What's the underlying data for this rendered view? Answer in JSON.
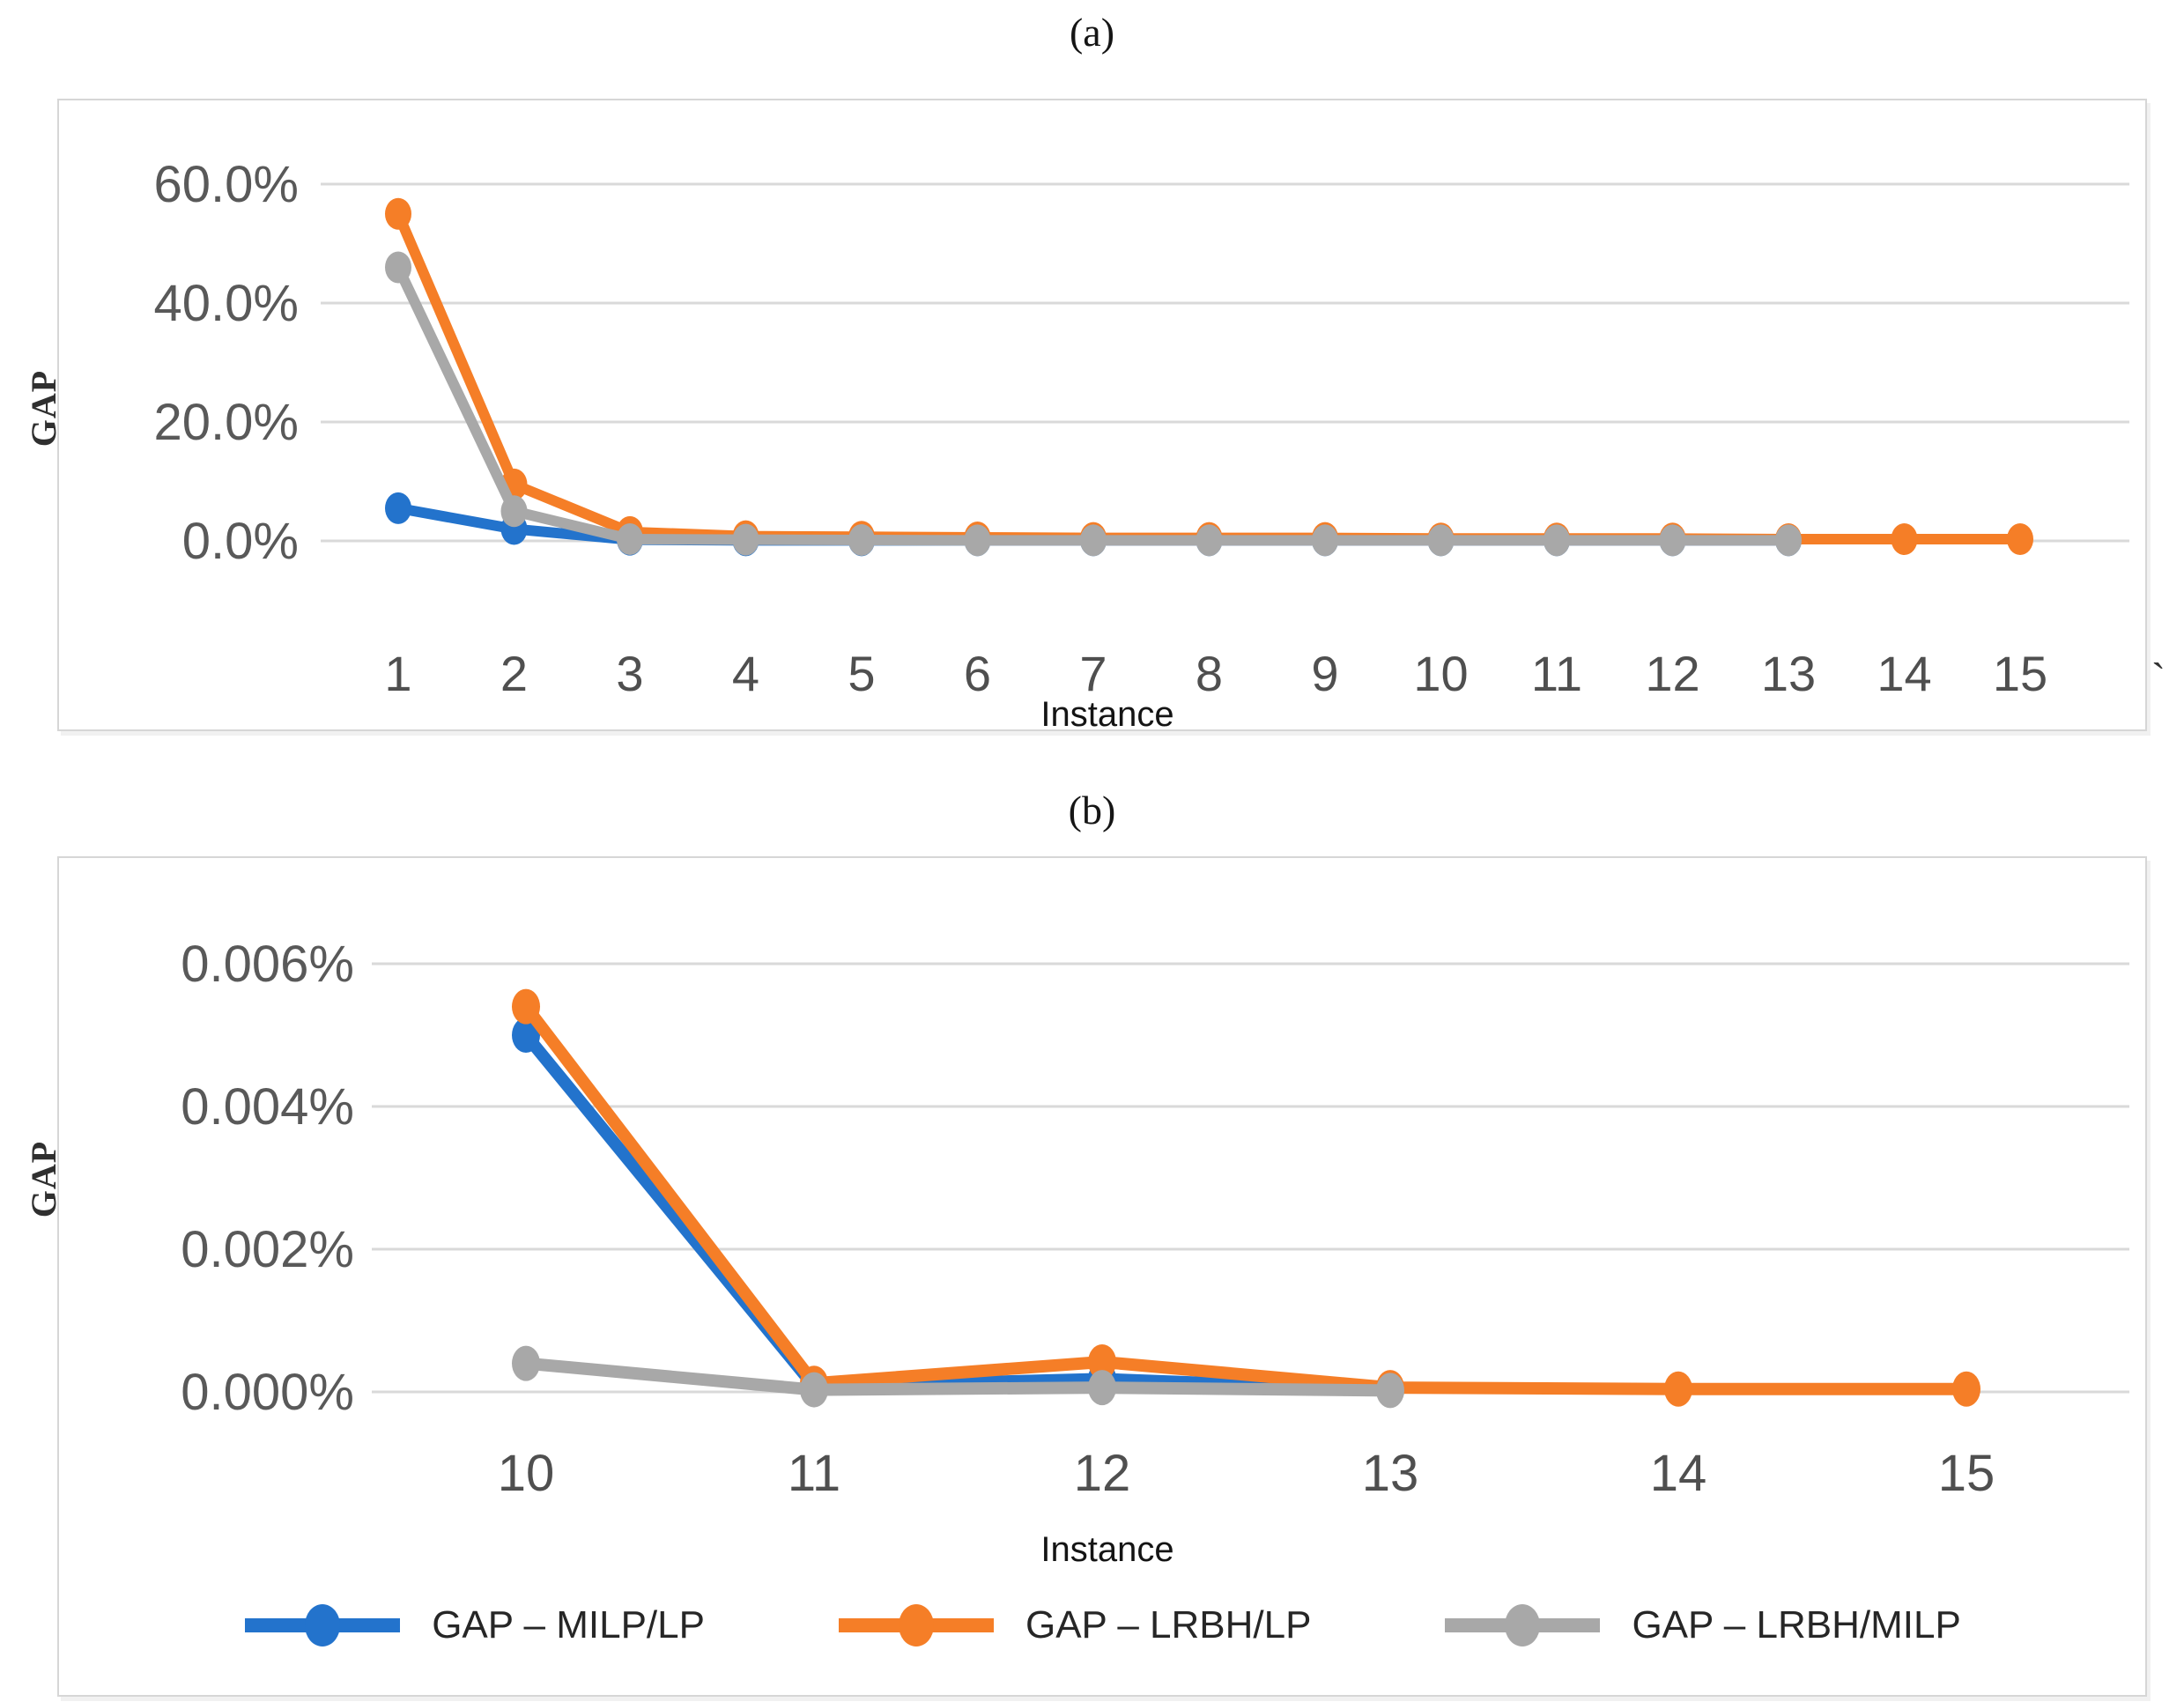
{
  "stray_mark": "`",
  "colors": {
    "series_blue": "#2373CC",
    "series_orange": "#F57E27",
    "series_gray": "#A8A8A8",
    "gridline": "#d9d9d9",
    "axis_text": "#595959",
    "x_tick_text": "#4f4f4f",
    "panel_border": "#d6d6d6"
  },
  "legend": {
    "items": [
      {
        "label": "GAP – MILP/LP",
        "color": "#2373CC"
      },
      {
        "label": "GAP – LRBH/LP",
        "color": "#F57E27"
      },
      {
        "label": "GAP – LRBH/MILP",
        "color": "#A8A8A8"
      }
    ]
  },
  "chart_data": [
    {
      "type": "line",
      "title": "(a)",
      "xlabel": "Instance",
      "ylabel": "GAP",
      "x_tick_labels": [
        "1",
        "2",
        "3",
        "4",
        "5",
        "6",
        "7",
        "8",
        "9",
        "10",
        "11",
        "12",
        "13",
        "14",
        "15"
      ],
      "y_ticks": {
        "labels": [
          "60.0%",
          "40.0%",
          "20.0%",
          "0.0%"
        ],
        "values": [
          60,
          40,
          20,
          0
        ]
      },
      "ylim": [
        0,
        65
      ],
      "grid": "horizontal",
      "legend_position": "shared-bottom",
      "series": [
        {
          "name": "GAP – MILP/LP",
          "color": "#2373CC",
          "x": [
            1,
            2,
            3,
            4,
            5,
            6,
            7,
            8,
            9,
            10,
            11,
            12,
            13
          ],
          "values": [
            5.5,
            2.0,
            0.2,
            0.1,
            0.1,
            0.1,
            0.1,
            0.1,
            0.1,
            0.1,
            0.1,
            0.1,
            0.1
          ]
        },
        {
          "name": "GAP – LRBH/LP",
          "color": "#F57E27",
          "x": [
            1,
            2,
            3,
            4,
            5,
            6,
            7,
            8,
            9,
            10,
            11,
            12,
            13,
            14,
            15
          ],
          "values": [
            55.0,
            9.5,
            1.5,
            0.8,
            0.7,
            0.6,
            0.5,
            0.5,
            0.5,
            0.4,
            0.4,
            0.4,
            0.3,
            0.3,
            0.3
          ]
        },
        {
          "name": "GAP – LRBH/MILP",
          "color": "#A8A8A8",
          "x": [
            1,
            2,
            3,
            4,
            5,
            6,
            7,
            8,
            9,
            10,
            11,
            12,
            13
          ],
          "values": [
            46.0,
            5.0,
            0.3,
            0.2,
            0.15,
            0.1,
            0.1,
            0.1,
            0.1,
            0.1,
            0.1,
            0.1,
            0.1
          ]
        }
      ]
    },
    {
      "type": "line",
      "title": "(b)",
      "xlabel": "Instance",
      "ylabel": "GAP",
      "x_tick_labels": [
        "10",
        "11",
        "12",
        "13",
        "14",
        "15"
      ],
      "y_ticks": {
        "labels": [
          "0.006%",
          "0.004%",
          "0.002%",
          "0.000%"
        ],
        "values": [
          0.006,
          0.004,
          0.002,
          0
        ]
      },
      "ylim": [
        0,
        0.0065
      ],
      "grid": "horizontal",
      "legend_position": "inside-bottom",
      "series": [
        {
          "name": "GAP – MILP/LP",
          "color": "#2373CC",
          "x": [
            10,
            11,
            12,
            13
          ],
          "values": [
            0.005,
            8e-05,
            0.00018,
            3e-05
          ]
        },
        {
          "name": "GAP – LRBH/LP",
          "color": "#F57E27",
          "x": [
            10,
            11,
            12,
            13,
            14,
            15
          ],
          "values": [
            0.0054,
            0.00012,
            0.00042,
            6e-05,
            4e-05,
            4e-05
          ]
        },
        {
          "name": "GAP – LRBH/MILP",
          "color": "#A8A8A8",
          "x": [
            10,
            11,
            12,
            13
          ],
          "values": [
            0.0004,
            3e-05,
            6e-05,
            2e-05
          ]
        }
      ]
    }
  ]
}
